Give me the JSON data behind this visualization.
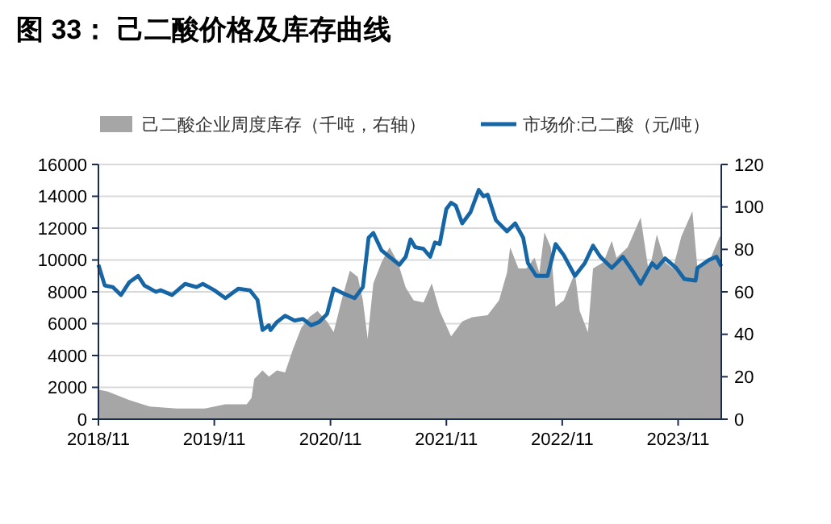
{
  "chart_data": {
    "type": "line",
    "title": "图 33：  己二酸价格及库存曲线",
    "legend": "top",
    "xlim": [
      "2018-11-01",
      "2024-03-16"
    ],
    "xticks": [
      {
        "value": "2018-11",
        "label": "2018/11"
      },
      {
        "value": "2019-11",
        "label": "2019/11"
      },
      {
        "value": "2020-11",
        "label": "2020/11"
      },
      {
        "value": "2021-11",
        "label": "2021/11"
      },
      {
        "value": "2022-11",
        "label": "2022/11"
      },
      {
        "value": "2023-11",
        "label": "2023/11"
      }
    ],
    "ylim": [
      0,
      16000
    ],
    "yticks": [
      0,
      2000,
      4000,
      6000,
      8000,
      10000,
      12000,
      14000,
      16000
    ],
    "y2lim": [
      0,
      120
    ],
    "y2ticks": [
      0,
      20,
      40,
      60,
      80,
      100,
      120
    ],
    "grid": "y",
    "series": [
      {
        "name": "己二酸企业周度库存（千吨，右轴）",
        "type": "area",
        "axis": "y2",
        "color": "#a6a6a6",
        "x": [
          "2018-11-01",
          "2018-12-01",
          "2019-02-06",
          "2019-04-11",
          "2019-07-06",
          "2019-10-01",
          "2019-12-06",
          "2020-02-11",
          "2020-02-26",
          "2020-03-06",
          "2020-04-01",
          "2020-04-21",
          "2020-05-16",
          "2020-06-11",
          "2020-07-06",
          "2020-08-01",
          "2020-08-26",
          "2020-09-21",
          "2020-10-21",
          "2020-11-11",
          "2020-12-06",
          "2021-01-01",
          "2021-01-26",
          "2021-02-11",
          "2021-02-26",
          "2021-03-16",
          "2021-04-11",
          "2021-05-06",
          "2021-06-01",
          "2021-06-26",
          "2021-07-21",
          "2021-08-21",
          "2021-09-16",
          "2021-10-11",
          "2021-11-16",
          "2021-12-21",
          "2022-01-21",
          "2022-03-11",
          "2022-04-16",
          "2022-05-11",
          "2022-05-21",
          "2022-06-16",
          "2022-07-11",
          "2022-08-06",
          "2022-08-21",
          "2022-09-06",
          "2022-09-26",
          "2022-10-11",
          "2022-11-06",
          "2022-12-11",
          "2022-12-26",
          "2023-01-21",
          "2023-02-06",
          "2023-03-11",
          "2023-04-06",
          "2023-04-21",
          "2023-05-26",
          "2023-07-06",
          "2023-08-01",
          "2023-08-26",
          "2023-09-21",
          "2023-10-16",
          "2023-11-11",
          "2023-12-16",
          "2024-01-01",
          "2024-02-06",
          "2024-03-11",
          "2024-03-16"
        ],
        "values": [
          14,
          13,
          9,
          6,
          5,
          5,
          7,
          7,
          10,
          19,
          23,
          20,
          23,
          22,
          33,
          43,
          48,
          51,
          46,
          41,
          56,
          70,
          67,
          56,
          38,
          64,
          74,
          81,
          74,
          62,
          56,
          55,
          64,
          51,
          39,
          46,
          48,
          49,
          56,
          69,
          81,
          71,
          71,
          76,
          69,
          88,
          81,
          53,
          56,
          69,
          51,
          41,
          71,
          74,
          84,
          76,
          81,
          95,
          69,
          87,
          74,
          71,
          86,
          98,
          71,
          74,
          86,
          86
        ]
      },
      {
        "name": "市场价:己二酸（元/吨）",
        "color": "#1666a5",
        "x": [
          "2018-11-01",
          "2018-11-21",
          "2018-12-16",
          "2019-01-11",
          "2019-02-06",
          "2019-03-06",
          "2019-03-26",
          "2019-05-01",
          "2019-05-16",
          "2019-06-21",
          "2019-08-01",
          "2019-09-06",
          "2019-09-26",
          "2019-11-01",
          "2019-12-06",
          "2020-01-16",
          "2020-02-21",
          "2020-03-16",
          "2020-04-01",
          "2020-04-21",
          "2020-04-26",
          "2020-05-16",
          "2020-06-11",
          "2020-07-11",
          "2020-08-06",
          "2020-09-01",
          "2020-09-26",
          "2020-10-21",
          "2020-11-11",
          "2020-12-11",
          "2021-01-16",
          "2021-02-11",
          "2021-03-01",
          "2021-03-16",
          "2021-04-11",
          "2021-05-06",
          "2021-06-06",
          "2021-06-26",
          "2021-07-11",
          "2021-07-26",
          "2021-08-21",
          "2021-09-11",
          "2021-09-26",
          "2021-10-11",
          "2021-11-01",
          "2021-11-16",
          "2021-12-01",
          "2021-12-21",
          "2022-01-16",
          "2022-02-11",
          "2022-02-26",
          "2022-03-11",
          "2022-04-06",
          "2022-05-11",
          "2022-06-06",
          "2022-07-01",
          "2022-07-16",
          "2022-08-11",
          "2022-09-16",
          "2022-10-11",
          "2022-11-06",
          "2022-12-11",
          "2023-01-11",
          "2023-02-06",
          "2023-03-01",
          "2023-04-06",
          "2023-05-11",
          "2023-06-11",
          "2023-07-06",
          "2023-08-11",
          "2023-08-26",
          "2023-09-21",
          "2023-10-26",
          "2023-11-21",
          "2023-12-26",
          "2024-01-01",
          "2024-02-06",
          "2024-03-01",
          "2024-03-16"
        ],
        "values": [
          9700,
          8400,
          8300,
          7800,
          8600,
          9000,
          8400,
          8000,
          8100,
          7800,
          8500,
          8300,
          8500,
          8100,
          7600,
          8200,
          8100,
          7500,
          5600,
          5900,
          5600,
          6100,
          6500,
          6200,
          6300,
          5900,
          6100,
          6600,
          8200,
          7900,
          7600,
          8300,
          11400,
          11700,
          10600,
          10200,
          9700,
          10200,
          11300,
          10800,
          10700,
          10200,
          11100,
          11000,
          13200,
          13600,
          13400,
          12300,
          13000,
          14400,
          14000,
          14100,
          12500,
          11800,
          12300,
          11400,
          9800,
          9000,
          9000,
          11000,
          10300,
          9000,
          9800,
          10900,
          10200,
          9500,
          10200,
          9300,
          8500,
          9800,
          9500,
          10100,
          9500,
          8800,
          8700,
          9500,
          10000,
          10200,
          9600
        ]
      }
    ]
  }
}
